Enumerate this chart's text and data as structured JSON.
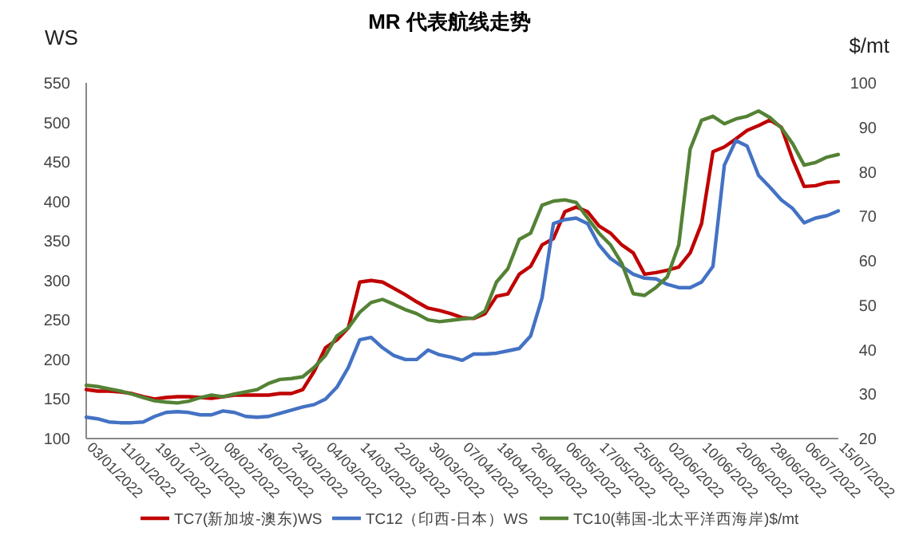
{
  "chart_data": {
    "type": "line",
    "title": "MR 代表航线走势",
    "ylabel": "WS",
    "y2label": "$/mt",
    "categories": [
      "03/01/2022",
      null,
      null,
      "11/01/2022",
      null,
      null,
      "19/01/2022",
      null,
      null,
      "27/01/2022",
      null,
      null,
      "08/02/2022",
      null,
      null,
      "16/02/2022",
      null,
      null,
      "24/02/2022",
      null,
      null,
      "04/03/2022",
      null,
      null,
      "14/03/2022",
      null,
      null,
      "22/03/2022",
      null,
      null,
      "30/03/2022",
      null,
      null,
      "07/04/2022",
      null,
      null,
      "18/04/2022",
      null,
      null,
      "26/04/2022",
      null,
      null,
      "06/05/2022",
      null,
      null,
      "17/05/2022",
      null,
      null,
      "25/05/2022",
      null,
      null,
      "02/06/2022",
      null,
      null,
      "10/06/2022",
      null,
      null,
      "20/06/2022",
      null,
      null,
      "28/06/2022",
      null,
      null,
      "06/07/2022",
      null,
      null,
      "15/07/2022"
    ],
    "ylim": [
      100,
      550
    ],
    "yticks": [
      100,
      150,
      200,
      250,
      300,
      350,
      400,
      450,
      500,
      550
    ],
    "y2lim": [
      20,
      100
    ],
    "y2ticks": [
      20,
      30,
      40,
      50,
      60,
      70,
      80,
      90,
      100
    ],
    "grid": false,
    "legend": "bottom",
    "marker": "none",
    "line_style": "solid",
    "series": [
      {
        "name": "TC7(新加坡-澳东)WS",
        "color": "#c00000",
        "values": [
          162,
          160,
          160,
          159,
          157,
          153,
          150,
          152,
          153,
          153,
          152,
          151,
          153,
          155,
          155,
          155,
          155,
          157,
          157,
          162,
          185,
          215,
          225,
          240,
          298,
          300,
          298,
          290,
          282,
          273,
          265,
          262,
          258,
          253,
          252,
          258,
          280,
          283,
          308,
          318,
          345,
          353,
          387,
          393,
          387,
          369,
          360,
          345,
          335,
          308,
          310,
          313,
          317,
          335,
          372,
          463,
          469,
          479,
          490,
          496,
          503,
          494,
          453,
          419,
          420,
          424,
          425
        ]
      },
      {
        "name": "TC12（印西-日本）WS",
        "color": "#4472c4",
        "values": [
          127,
          125,
          121,
          120,
          120,
          121,
          128,
          133,
          134,
          133,
          130,
          130,
          135,
          133,
          128,
          127,
          128,
          132,
          136,
          140,
          143,
          150,
          165,
          190,
          225,
          228,
          215,
          205,
          200,
          200,
          212,
          206,
          203,
          199,
          207,
          207,
          208,
          211,
          214,
          230,
          278,
          372,
          377,
          379,
          372,
          345,
          328,
          318,
          308,
          303,
          302,
          295,
          291,
          291,
          298,
          318,
          446,
          477,
          470,
          433,
          418,
          402,
          391,
          373,
          379,
          382,
          388
        ]
      },
      {
        "name": "TC10(韩国-北太平洋西海岸)$/mt",
        "color": "#548235",
        "axis": "y2",
        "values": [
          32.0,
          31.7,
          31.2,
          30.7,
          30.0,
          29.2,
          28.5,
          28.2,
          28.0,
          28.4,
          29.2,
          29.8,
          29.4,
          30.0,
          30.5,
          31.0,
          32.4,
          33.3,
          33.5,
          33.9,
          36.0,
          38.7,
          43.1,
          44.9,
          48.4,
          50.6,
          51.3,
          50.2,
          49.0,
          48.1,
          46.7,
          46.3,
          46.6,
          46.9,
          47.1,
          48.7,
          55.2,
          58.2,
          64.8,
          66.2,
          72.5,
          73.4,
          73.7,
          73.1,
          69.6,
          66.2,
          63.6,
          59.4,
          52.6,
          52.2,
          54.0,
          56.4,
          63.6,
          85.1,
          91.6,
          92.5,
          90.8,
          91.9,
          92.5,
          93.7,
          92.2,
          89.9,
          86.3,
          81.5,
          82.1,
          83.3,
          83.9
        ]
      }
    ]
  }
}
